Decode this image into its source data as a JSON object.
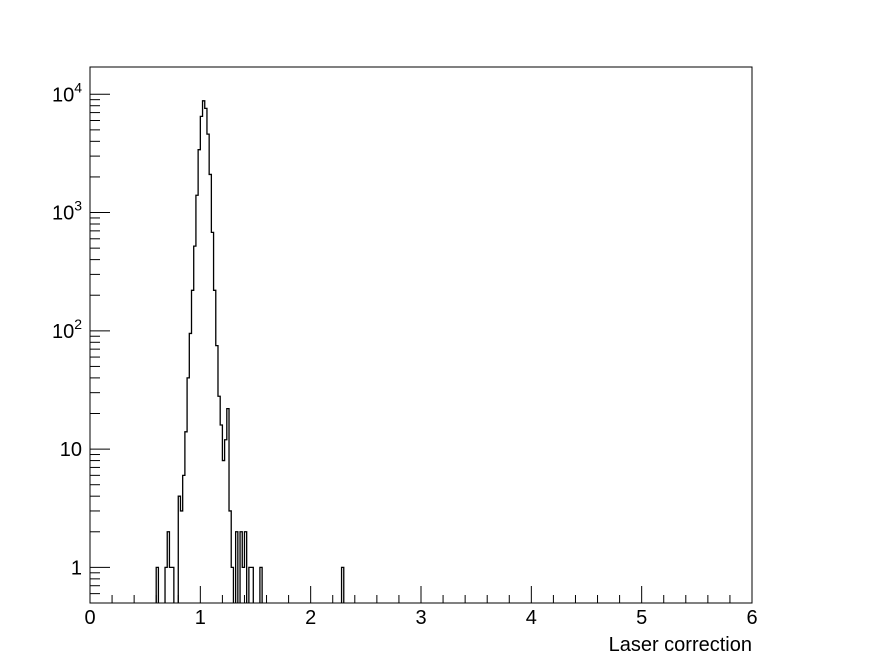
{
  "chart_data": {
    "type": "histogram",
    "xlabel": "Laser correction",
    "ylabel": "",
    "xlim": [
      0,
      6
    ],
    "ylim": [
      0.5,
      17000
    ],
    "y_scale": "log",
    "grid": false,
    "legend": "none",
    "x_ticks": [
      {
        "value": 0,
        "label": "0"
      },
      {
        "value": 1,
        "label": "1"
      },
      {
        "value": 2,
        "label": "2"
      },
      {
        "value": 3,
        "label": "3"
      },
      {
        "value": 4,
        "label": "4"
      },
      {
        "value": 5,
        "label": "5"
      },
      {
        "value": 6,
        "label": "6"
      }
    ],
    "y_ticks": [
      {
        "value": 1,
        "base": "1",
        "exp": ""
      },
      {
        "value": 10,
        "base": "10",
        "exp": ""
      },
      {
        "value": 100,
        "base": "10",
        "exp": "2"
      },
      {
        "value": 1000,
        "base": "10",
        "exp": "3"
      },
      {
        "value": 10000,
        "base": "10",
        "exp": "4"
      }
    ],
    "bin_width": 0.02,
    "bins": [
      {
        "x": 0.6,
        "y": 1
      },
      {
        "x": 0.68,
        "y": 1
      },
      {
        "x": 0.7,
        "y": 2
      },
      {
        "x": 0.72,
        "y": 1
      },
      {
        "x": 0.74,
        "y": 1
      },
      {
        "x": 0.8,
        "y": 4
      },
      {
        "x": 0.82,
        "y": 3
      },
      {
        "x": 0.84,
        "y": 6
      },
      {
        "x": 0.86,
        "y": 14
      },
      {
        "x": 0.88,
        "y": 40
      },
      {
        "x": 0.9,
        "y": 95
      },
      {
        "x": 0.92,
        "y": 220
      },
      {
        "x": 0.94,
        "y": 520
      },
      {
        "x": 0.96,
        "y": 1400
      },
      {
        "x": 0.98,
        "y": 3400
      },
      {
        "x": 1.0,
        "y": 6500
      },
      {
        "x": 1.02,
        "y": 8800
      },
      {
        "x": 1.04,
        "y": 7600
      },
      {
        "x": 1.06,
        "y": 4600
      },
      {
        "x": 1.08,
        "y": 2100
      },
      {
        "x": 1.1,
        "y": 680
      },
      {
        "x": 1.12,
        "y": 220
      },
      {
        "x": 1.14,
        "y": 75
      },
      {
        "x": 1.16,
        "y": 28
      },
      {
        "x": 1.18,
        "y": 16
      },
      {
        "x": 1.2,
        "y": 8
      },
      {
        "x": 1.22,
        "y": 12
      },
      {
        "x": 1.24,
        "y": 22
      },
      {
        "x": 1.26,
        "y": 3
      },
      {
        "x": 1.28,
        "y": 1
      },
      {
        "x": 1.32,
        "y": 2
      },
      {
        "x": 1.36,
        "y": 2
      },
      {
        "x": 1.38,
        "y": 1
      },
      {
        "x": 1.4,
        "y": 2
      },
      {
        "x": 1.44,
        "y": 1
      },
      {
        "x": 1.46,
        "y": 1
      },
      {
        "x": 1.54,
        "y": 1
      },
      {
        "x": 2.28,
        "y": 1
      }
    ]
  }
}
